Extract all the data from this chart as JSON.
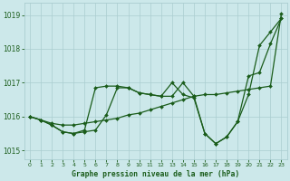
{
  "bg_color": "#cce8ea",
  "grid_color": "#aacdd0",
  "line_color": "#1a5c1a",
  "title": "Graphe pression niveau de la mer (hPa)",
  "xlim": [
    -0.5,
    23.5
  ],
  "ylim": [
    1014.75,
    1019.35
  ],
  "yticks": [
    1015,
    1016,
    1017,
    1018,
    1019
  ],
  "xticks": [
    0,
    1,
    2,
    3,
    4,
    5,
    6,
    7,
    8,
    9,
    10,
    11,
    12,
    13,
    14,
    15,
    16,
    17,
    18,
    19,
    20,
    21,
    22,
    23
  ],
  "line1_x": [
    0,
    1,
    2,
    3,
    4,
    5,
    6,
    7,
    8,
    9,
    10,
    11,
    12,
    13,
    14,
    15,
    16,
    17,
    18,
    19,
    20,
    21,
    22,
    23
  ],
  "line1_y": [
    1016.0,
    1015.9,
    1015.8,
    1015.75,
    1015.75,
    1015.8,
    1015.85,
    1015.9,
    1015.95,
    1016.05,
    1016.1,
    1016.2,
    1016.3,
    1016.4,
    1016.5,
    1016.6,
    1016.65,
    1016.65,
    1016.7,
    1016.75,
    1016.8,
    1016.85,
    1016.9,
    1019.05
  ],
  "line2_x": [
    0,
    1,
    2,
    3,
    4,
    5,
    6,
    7,
    8,
    9,
    10,
    11,
    12,
    13,
    14,
    15,
    16,
    17,
    18,
    19,
    20,
    21,
    22,
    23
  ],
  "line2_y": [
    1016.0,
    1015.9,
    1015.75,
    1015.55,
    1015.5,
    1015.55,
    1015.6,
    1016.05,
    1016.85,
    1016.85,
    1016.7,
    1016.65,
    1016.6,
    1017.0,
    1016.65,
    1016.55,
    1015.5,
    1015.2,
    1015.4,
    1015.85,
    1017.2,
    1017.3,
    1018.15,
    1018.9
  ],
  "line3_x": [
    0,
    1,
    2,
    3,
    4,
    5,
    6,
    7,
    8,
    9,
    10,
    11,
    12,
    13,
    14,
    15,
    16,
    17,
    18,
    19,
    20,
    21,
    22,
    23
  ],
  "line3_y": [
    1016.0,
    1015.9,
    1015.75,
    1015.55,
    1015.5,
    1015.6,
    1016.85,
    1016.9,
    1016.9,
    1016.85,
    1016.7,
    1016.65,
    1016.6,
    1016.6,
    1017.0,
    1016.6,
    1015.5,
    1015.2,
    1015.4,
    1015.85,
    1016.65,
    1018.1,
    1018.5,
    1018.9
  ]
}
